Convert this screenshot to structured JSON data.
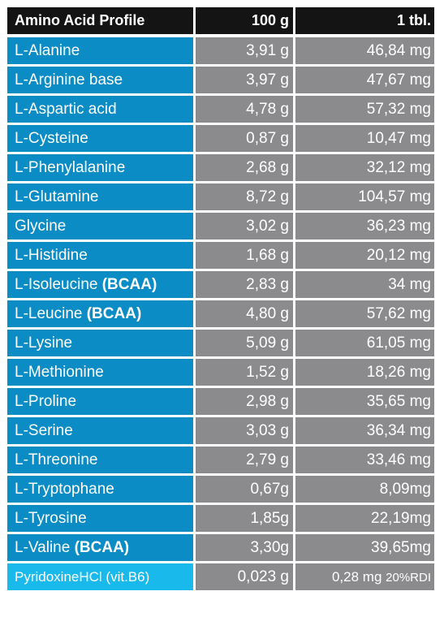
{
  "table": {
    "header": [
      "Amino Acid Profile",
      "100 g",
      "1 tbl."
    ],
    "rows": [
      {
        "name": "L-Alanine",
        "per_100g": "3,91 g",
        "per_tbl": "46,84 mg"
      },
      {
        "name": "L-Arginine base",
        "per_100g": "3,97 g",
        "per_tbl": "47,67 mg"
      },
      {
        "name": "L-Aspartic acid",
        "per_100g": "4,78 g",
        "per_tbl": "57,32 mg"
      },
      {
        "name": "L-Cysteine",
        "per_100g": "0,87 g",
        "per_tbl": "10,47 mg"
      },
      {
        "name": "L-Phenylalanine",
        "per_100g": "2,68 g",
        "per_tbl": "32,12 mg"
      },
      {
        "name": "L-Glutamine",
        "per_100g": "8,72 g",
        "per_tbl": "104,57 mg"
      },
      {
        "name": "Glycine",
        "per_100g": "3,02 g",
        "per_tbl": "36,23 mg"
      },
      {
        "name": "L-Histidine",
        "per_100g": "1,68 g",
        "per_tbl": "20,12 mg"
      },
      {
        "name": "L-Isoleucine",
        "tag": "(BCAA)",
        "per_100g": "2,83 g",
        "per_tbl": "34 mg"
      },
      {
        "name": "L-Leucine",
        "tag": "(BCAA)",
        "per_100g": "4,80 g",
        "per_tbl": "57,62 mg"
      },
      {
        "name": "L-Lysine",
        "per_100g": "5,09 g",
        "per_tbl": "61,05 mg"
      },
      {
        "name": "L-Methionine",
        "per_100g": "1,52 g",
        "per_tbl": "18,26 mg"
      },
      {
        "name": "L-Proline",
        "per_100g": "2,98 g",
        "per_tbl": "35,65 mg"
      },
      {
        "name": "L-Serine",
        "per_100g": "3,03 g",
        "per_tbl": "36,34 mg"
      },
      {
        "name": "L-Threonine",
        "per_100g": "2,79 g",
        "per_tbl": "33,46 mg"
      },
      {
        "name": "L-Tryptophane",
        "per_100g": "0,67g",
        "per_tbl": "8,09mg"
      },
      {
        "name": "L-Tyrosine",
        "per_100g": "1,85g",
        "per_tbl": "22,19mg"
      },
      {
        "name": "L-Valine",
        "tag": "(BCAA)",
        "per_100g": "3,30g",
        "per_tbl": "39,65mg"
      },
      {
        "name": "PyridoxineHCl (vit.B6)",
        "per_100g": "0,023 g",
        "per_tbl": "0,28 mg",
        "note": "20%RDI"
      }
    ]
  }
}
